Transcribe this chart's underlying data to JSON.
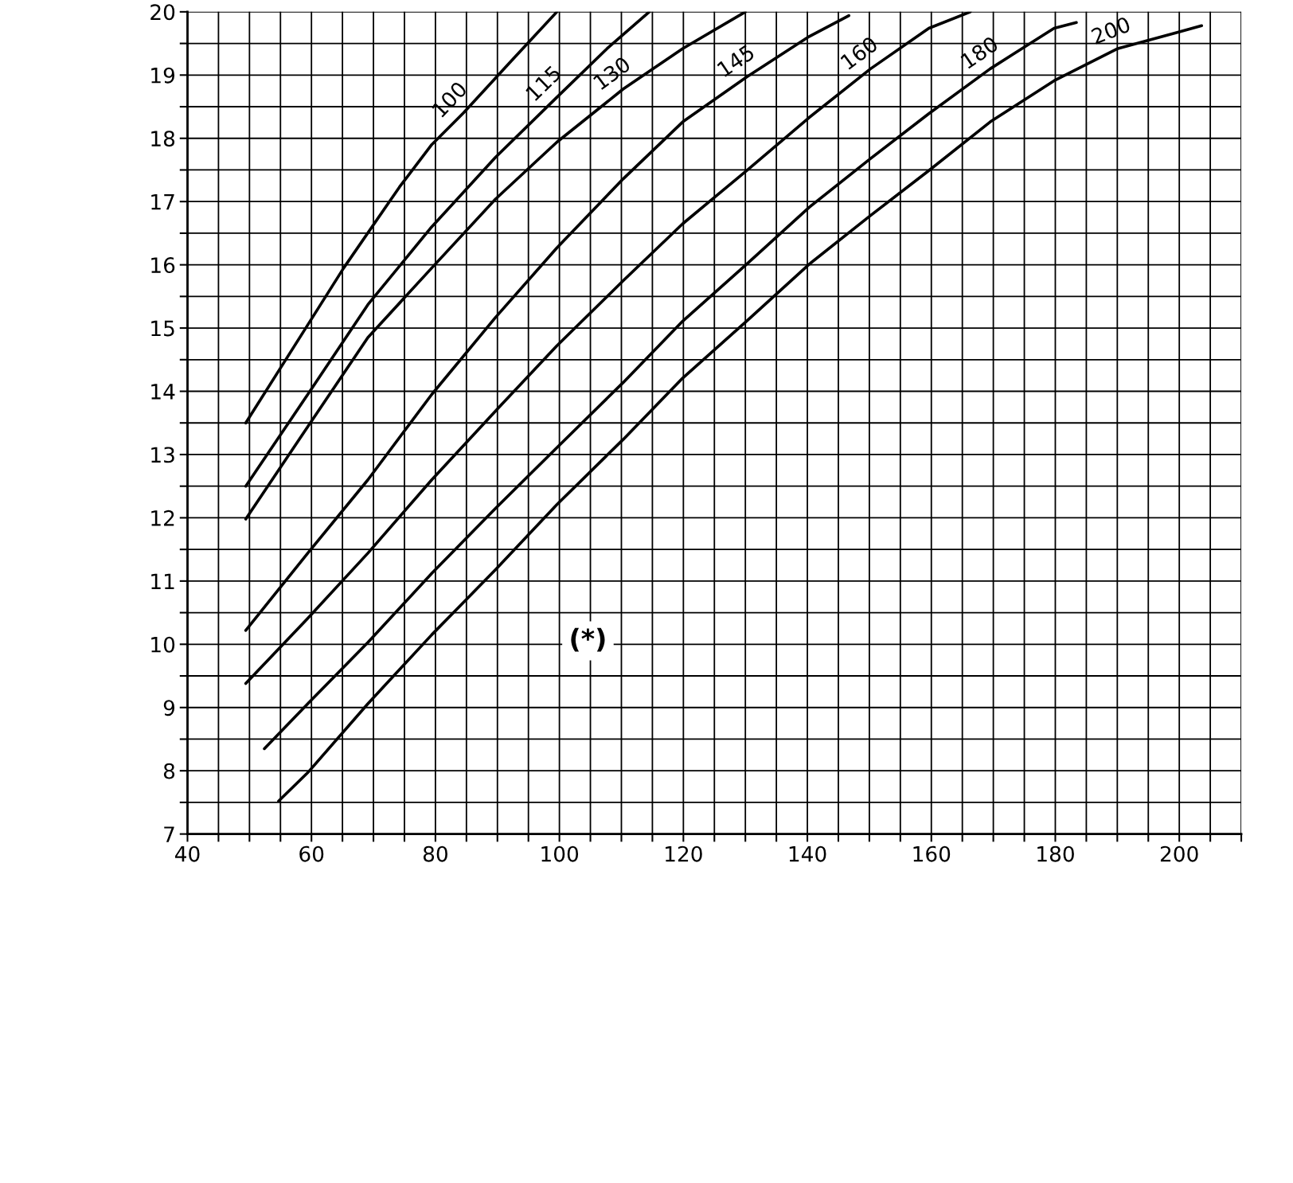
{
  "chart_data": {
    "type": "line",
    "xlim": [
      40,
      210
    ],
    "ylim": [
      7,
      20
    ],
    "xticks": [
      40,
      {
        "value": 45,
        "label": null
      },
      {
        "value": 50,
        "label": null
      },
      {
        "value": 55,
        "label": null
      },
      60,
      {
        "value": 65,
        "label": null
      },
      {
        "value": 70,
        "label": null
      },
      {
        "value": 75,
        "label": null
      },
      80,
      {
        "value": 85,
        "label": null
      },
      {
        "value": 90,
        "label": null
      },
      {
        "value": 95,
        "label": null
      },
      100,
      {
        "value": 105,
        "label": null
      },
      {
        "value": 110,
        "label": null
      },
      {
        "value": 115,
        "label": null
      },
      120,
      {
        "value": 125,
        "label": null
      },
      {
        "value": 130,
        "label": null
      },
      {
        "value": 135,
        "label": null
      },
      140,
      {
        "value": 145,
        "label": null
      },
      {
        "value": 150,
        "label": null
      },
      {
        "value": 155,
        "label": null
      },
      160,
      {
        "value": 165,
        "label": null
      },
      {
        "value": 170,
        "label": null
      },
      {
        "value": 175,
        "label": null
      },
      180,
      {
        "value": 185,
        "label": null
      },
      {
        "value": 190,
        "label": null
      },
      {
        "value": 195,
        "label": null
      },
      200,
      {
        "value": 205,
        "label": null
      },
      {
        "value": 210,
        "label": null
      }
    ],
    "yticks": [
      7,
      {
        "value": 7.5,
        "label": null
      },
      8,
      {
        "value": 8.5,
        "label": null
      },
      9,
      {
        "value": 9.5,
        "label": null
      },
      10,
      {
        "value": 10.5,
        "label": null
      },
      11,
      {
        "value": 11.5,
        "label": null
      },
      12,
      {
        "value": 12.5,
        "label": null
      },
      13,
      {
        "value": 13.5,
        "label": null
      },
      14,
      {
        "value": 14.5,
        "label": null
      },
      15,
      {
        "value": 15.5,
        "label": null
      },
      16,
      {
        "value": 16.5,
        "label": null
      },
      17,
      {
        "value": 17.5,
        "label": null
      },
      18,
      {
        "value": 18.5,
        "label": null
      },
      19,
      {
        "value": 19.5,
        "label": null
      },
      20
    ],
    "grid": true,
    "marker": "none",
    "line_style": "solid",
    "annotations": [
      "(*)"
    ],
    "series": [
      {
        "name": "100",
        "color": "#000000",
        "x": [
          49.4,
          59.4,
          65.2,
          74.2,
          79.4,
          84.5,
          92.3,
          99.6
        ],
        "values": [
          13.5,
          15.05,
          15.95,
          17.23,
          17.9,
          18.4,
          19.23,
          20.0
        ]
      },
      {
        "name": "115",
        "color": "#000000",
        "x": [
          49.4,
          59.4,
          69.1,
          79.4,
          89.7,
          99.6,
          107.7,
          114.5
        ],
        "values": [
          12.5,
          13.95,
          15.37,
          16.6,
          17.7,
          18.65,
          19.42,
          20.0
        ]
      },
      {
        "name": "130",
        "color": "#000000",
        "x": [
          49.4,
          59.4,
          69.1,
          79.4,
          89.7,
          99.6,
          110.3,
          119.9,
          130.0
        ],
        "values": [
          11.98,
          13.44,
          14.85,
          15.95,
          17.04,
          17.94,
          18.78,
          19.42,
          20.0
        ]
      },
      {
        "name": "145",
        "color": "#000000",
        "x": [
          49.4,
          59.4,
          69.1,
          79.4,
          89.7,
          99.6,
          110.3,
          119.9,
          130.2,
          140.3,
          146.7
        ],
        "values": [
          10.22,
          11.44,
          12.6,
          13.95,
          15.17,
          16.27,
          17.36,
          18.26,
          18.97,
          19.61,
          19.94
        ]
      },
      {
        "name": "160",
        "color": "#000000",
        "x": [
          49.4,
          59.4,
          69.1,
          79.4,
          89.7,
          99.6,
          110.3,
          119.9,
          130.2,
          140.3,
          150.2,
          159.6,
          166.3
        ],
        "values": [
          9.38,
          10.41,
          11.44,
          12.6,
          13.69,
          14.72,
          15.75,
          16.65,
          17.49,
          18.33,
          19.1,
          19.74,
          20.0
        ]
      },
      {
        "name": "180",
        "color": "#000000",
        "x": [
          52.4,
          59.4,
          69.1,
          79.4,
          89.7,
          99.6,
          110.3,
          119.9,
          130.2,
          140.3,
          150.2,
          159.6,
          169.5,
          179.8,
          183.4
        ],
        "values": [
          8.35,
          9.06,
          10.03,
          11.12,
          12.15,
          13.11,
          14.14,
          15.11,
          16.01,
          16.91,
          17.68,
          18.39,
          19.1,
          19.74,
          19.83
        ]
      },
      {
        "name": "200",
        "color": "#000000",
        "x": [
          54.7,
          59.4,
          69.1,
          79.4,
          89.7,
          99.6,
          110.3,
          119.9,
          130.2,
          140.3,
          150.2,
          159.6,
          169.5,
          179.8,
          190.1,
          199.9,
          203.6
        ],
        "values": [
          7.52,
          7.97,
          9.06,
          10.15,
          11.18,
          12.21,
          13.24,
          14.21,
          15.11,
          16.01,
          16.78,
          17.49,
          18.26,
          18.91,
          19.42,
          19.68,
          19.78
        ]
      }
    ]
  }
}
